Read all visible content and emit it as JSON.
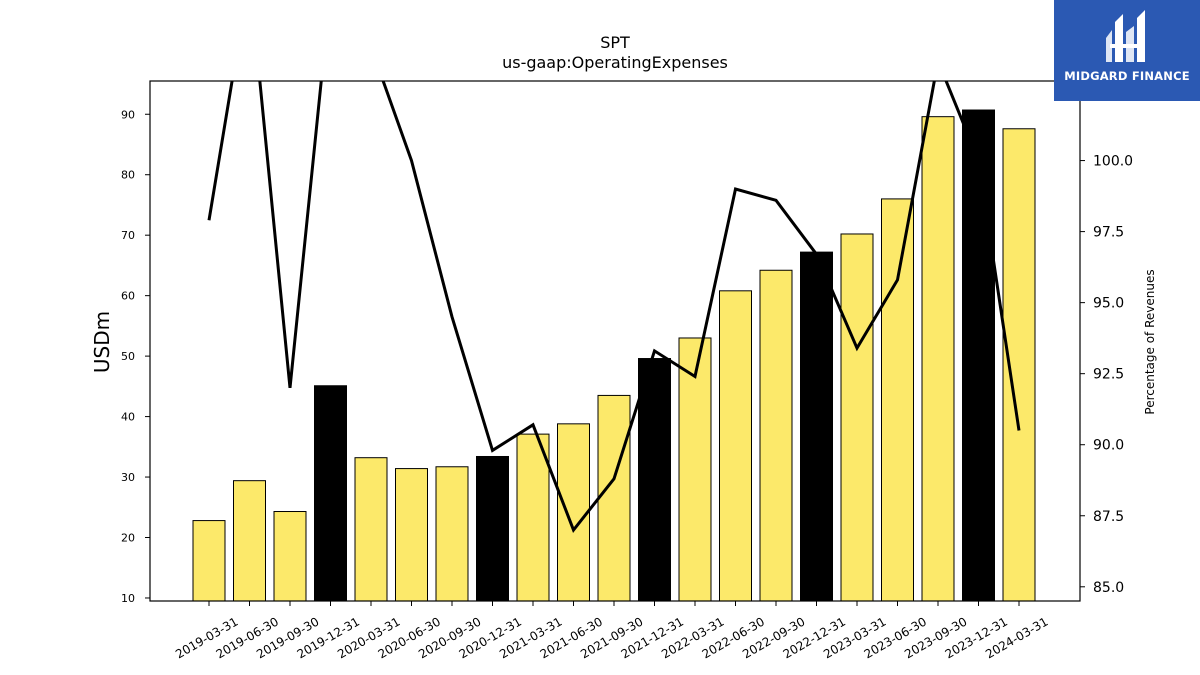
{
  "brand": {
    "name": "MIDGARD FINANCE",
    "background": "#2b59b3"
  },
  "chart_data": {
    "type": "bar",
    "title": "SPT",
    "subtitle": "us-gaap:OperatingExpenses",
    "ylabel": "USDm",
    "y2label": "Percentage of Revenues",
    "ylim": [
      9.5,
      95.5
    ],
    "y2lim": [
      84.5,
      102.8
    ],
    "yticks": [
      10,
      20,
      30,
      40,
      50,
      60,
      70,
      80,
      90
    ],
    "y2ticks": [
      "85.0",
      "87.5",
      "90.0",
      "92.5",
      "95.0",
      "97.5",
      "100.0"
    ],
    "categories": [
      "2019-03-31",
      "2019-06-30",
      "2019-09-30",
      "2019-12-31",
      "2020-03-31",
      "2020-06-30",
      "2020-09-30",
      "2020-12-31",
      "2021-03-31",
      "2021-06-30",
      "2021-09-30",
      "2021-12-31",
      "2022-03-31",
      "2022-06-30",
      "2022-09-30",
      "2022-12-31",
      "2023-03-31",
      "2023-06-30",
      "2023-09-30",
      "2023-12-31",
      "2024-03-31"
    ],
    "series": [
      {
        "values": [
          22.8,
          29.4,
          24.3,
          45.1,
          33.2,
          31.4,
          31.7,
          33.4,
          37.1,
          38.8,
          43.5,
          49.6,
          53.0,
          60.8,
          64.2,
          67.2,
          70.2,
          76.0,
          89.6,
          90.7,
          87.6
        ],
        "highlight": [
          false,
          false,
          false,
          true,
          false,
          false,
          false,
          true,
          false,
          false,
          false,
          true,
          false,
          false,
          false,
          true,
          false,
          false,
          false,
          true,
          false
        ]
      },
      {
        "axis": "right",
        "type": "line",
        "values": [
          97.9,
          106.5,
          92.0,
          106.0,
          104.0,
          100.0,
          94.5,
          89.8,
          90.7,
          87.0,
          88.8,
          93.3,
          92.4,
          99.0,
          98.6,
          96.7,
          93.4,
          95.8,
          103.5,
          100.0,
          90.5
        ]
      }
    ],
    "colors": {
      "bar": "#fce96a",
      "bar_highlight": "#000000",
      "bar_edge": "#000000",
      "line": "#000000"
    },
    "grid": false,
    "legend": "none"
  }
}
